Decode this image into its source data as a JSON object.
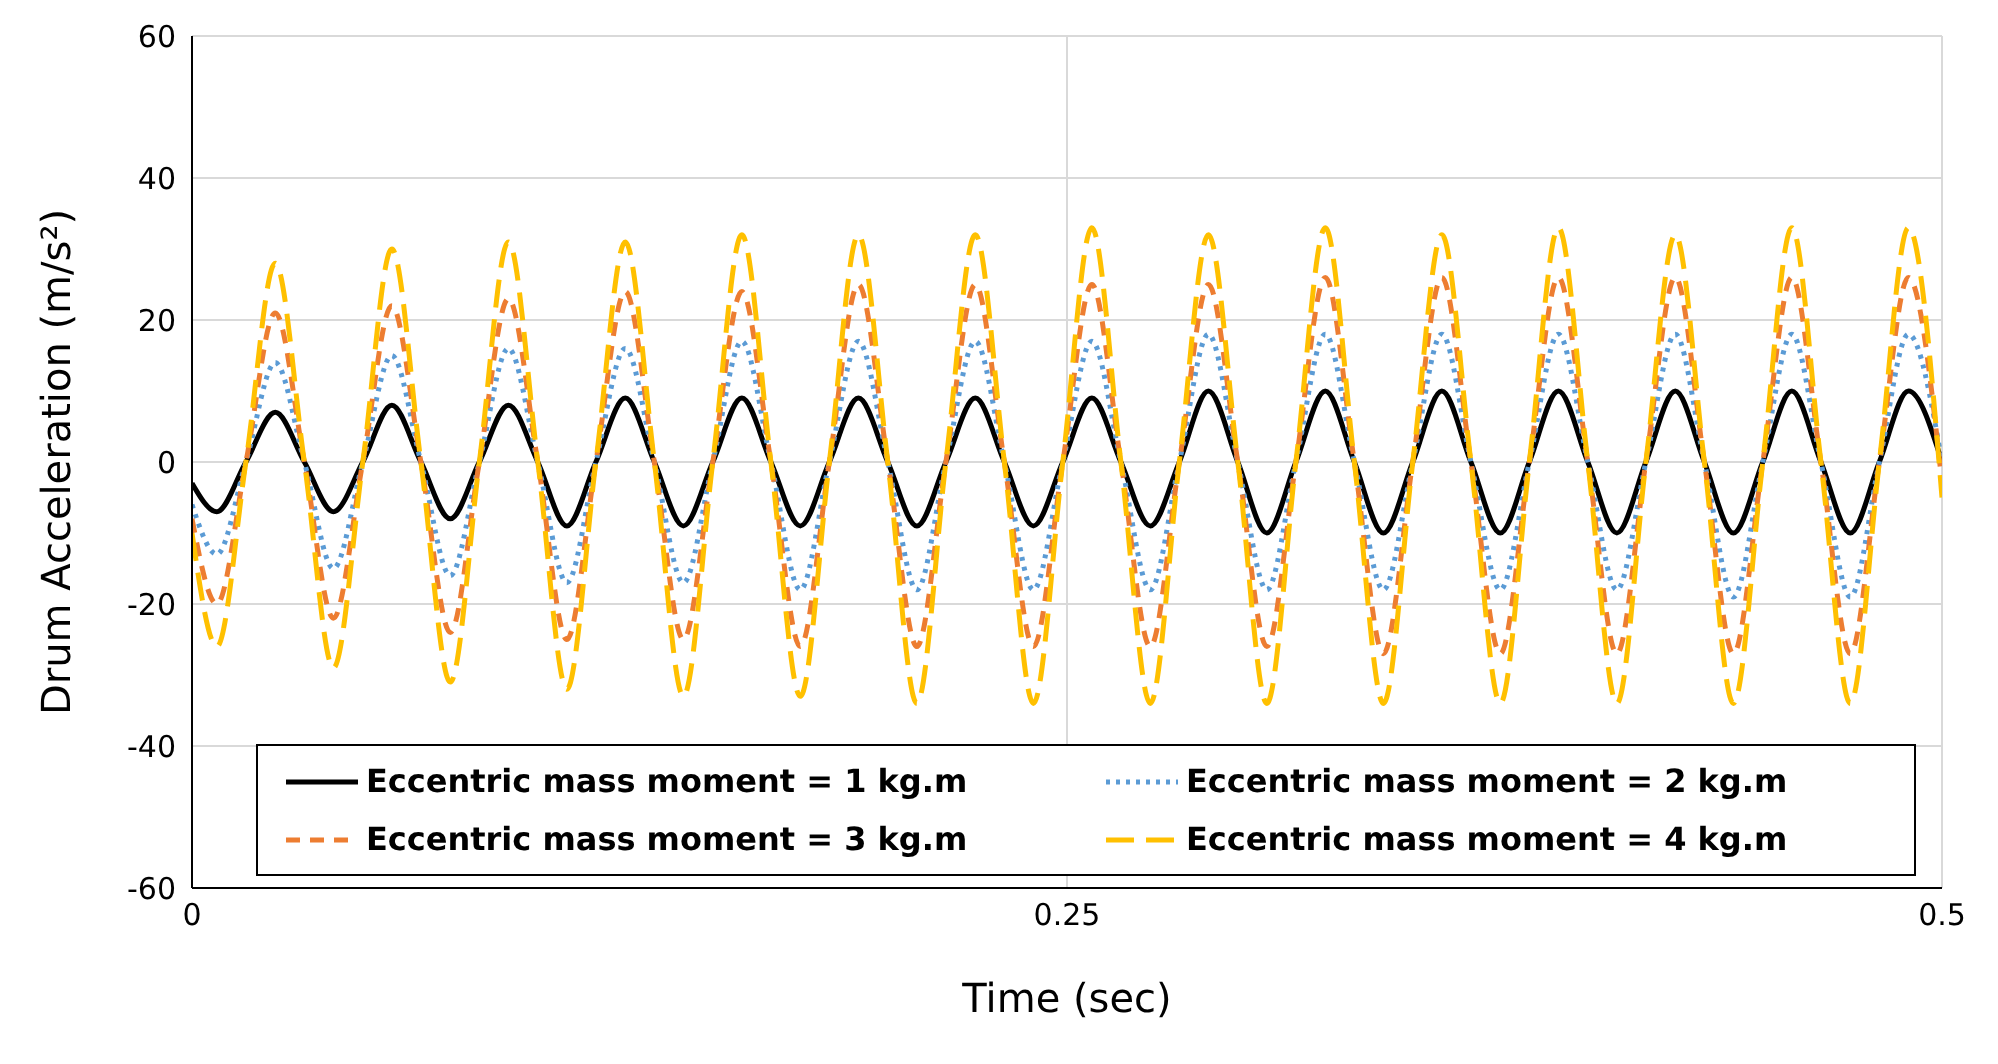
{
  "chart_data": {
    "type": "line",
    "xlabel": "Time (sec)",
    "ylabel": "Drum Acceleration (m/s²)",
    "x": [
      0,
      0.0071,
      0.0154,
      0.0238,
      0.0321,
      0.0404,
      0.0488,
      0.0571,
      0.0654,
      0.0738,
      0.0821,
      0.0904,
      0.0988,
      0.1071,
      0.1154,
      0.1238,
      0.1321,
      0.1404,
      0.1488,
      0.1571,
      0.1654,
      0.1738,
      0.1821,
      0.1904,
      0.1988,
      0.2071,
      0.2154,
      0.2238,
      0.2321,
      0.2404,
      0.2488,
      0.2571,
      0.2654,
      0.2738,
      0.2821,
      0.2904,
      0.2988,
      0.3071,
      0.3154,
      0.3238,
      0.3321,
      0.3404,
      0.3488,
      0.3571,
      0.3654,
      0.3738,
      0.3821,
      0.3904,
      0.3988,
      0.4071,
      0.4154,
      0.4238,
      0.4321,
      0.4404,
      0.4488,
      0.4571,
      0.4654,
      0.4738,
      0.4821,
      0.4904,
      0.5
    ],
    "series": [
      {
        "name": "Eccentric mass moment = 1 kg.m",
        "color": "#000000",
        "line_style": "solid",
        "values": [
          -3,
          -7,
          0,
          7,
          0,
          -7,
          0,
          8,
          0,
          -8,
          0,
          8,
          0,
          -9,
          0,
          9,
          0,
          -9,
          0,
          9,
          0,
          -9,
          0,
          9,
          0,
          -9,
          0,
          9,
          0,
          -9,
          0,
          9,
          0,
          -9,
          0,
          10,
          0,
          -10,
          0,
          10,
          0,
          -10,
          0,
          10,
          0,
          -10,
          0,
          10,
          0,
          -10,
          0,
          10,
          0,
          -10,
          0,
          10,
          0,
          -10,
          0,
          10,
          0
        ]
      },
      {
        "name": "Eccentric mass moment = 2 kg.m",
        "color": "#5b9bd5",
        "line_style": "dotted",
        "values": [
          -6,
          -13,
          0,
          14,
          0,
          -15,
          0,
          15,
          0,
          -16,
          0,
          16,
          0,
          -17,
          0,
          16,
          0,
          -17,
          0,
          17,
          0,
          -18,
          0,
          17,
          0,
          -18,
          0,
          17,
          0,
          -18,
          0,
          17,
          0,
          -18,
          0,
          18,
          0,
          -18,
          0,
          18,
          0,
          -18,
          0,
          18,
          0,
          -18,
          0,
          18,
          0,
          -18,
          0,
          18,
          0,
          -19,
          0,
          18,
          0,
          -19,
          0,
          18,
          0
        ]
      },
      {
        "name": "Eccentric mass moment = 3 kg.m",
        "color": "#ed7d31",
        "line_style": "dashed",
        "values": [
          -8,
          -20,
          0,
          21,
          0,
          -22,
          0,
          22,
          0,
          -24,
          0,
          23,
          0,
          -25,
          0,
          24,
          0,
          -25,
          0,
          24,
          0,
          -26,
          0,
          25,
          0,
          -26,
          0,
          25,
          0,
          -26,
          0,
          25,
          0,
          -26,
          0,
          25,
          0,
          -26,
          0,
          26,
          0,
          -27,
          0,
          26,
          0,
          -27,
          0,
          26,
          0,
          -27,
          0,
          26,
          0,
          -27,
          0,
          26,
          0,
          -27,
          0,
          26,
          -3
        ]
      },
      {
        "name": "Eccentric mass moment = 4 kg.m",
        "color": "#ffc000",
        "line_style": "dashed",
        "values": [
          -10,
          -26,
          0,
          28,
          0,
          -29,
          0,
          30,
          0,
          -31,
          0,
          31,
          0,
          -32,
          0,
          31,
          0,
          -33,
          0,
          32,
          0,
          -33,
          0,
          32,
          0,
          -34,
          0,
          32,
          0,
          -34,
          0,
          33,
          0,
          -34,
          0,
          32,
          0,
          -34,
          0,
          33,
          0,
          -34,
          0,
          32,
          0,
          -34,
          0,
          33,
          0,
          -34,
          0,
          32,
          0,
          -34,
          0,
          33,
          0,
          -34,
          0,
          33,
          -5
        ]
      }
    ],
    "xlim": [
      0,
      0.5
    ],
    "xticks": [
      0,
      0.25,
      0.5
    ],
    "ylim": [
      -60,
      60
    ],
    "yticks": [
      -60,
      -40,
      -20,
      0,
      20,
      40,
      60
    ],
    "grid": true,
    "legend": "bottom",
    "marker": "none"
  }
}
